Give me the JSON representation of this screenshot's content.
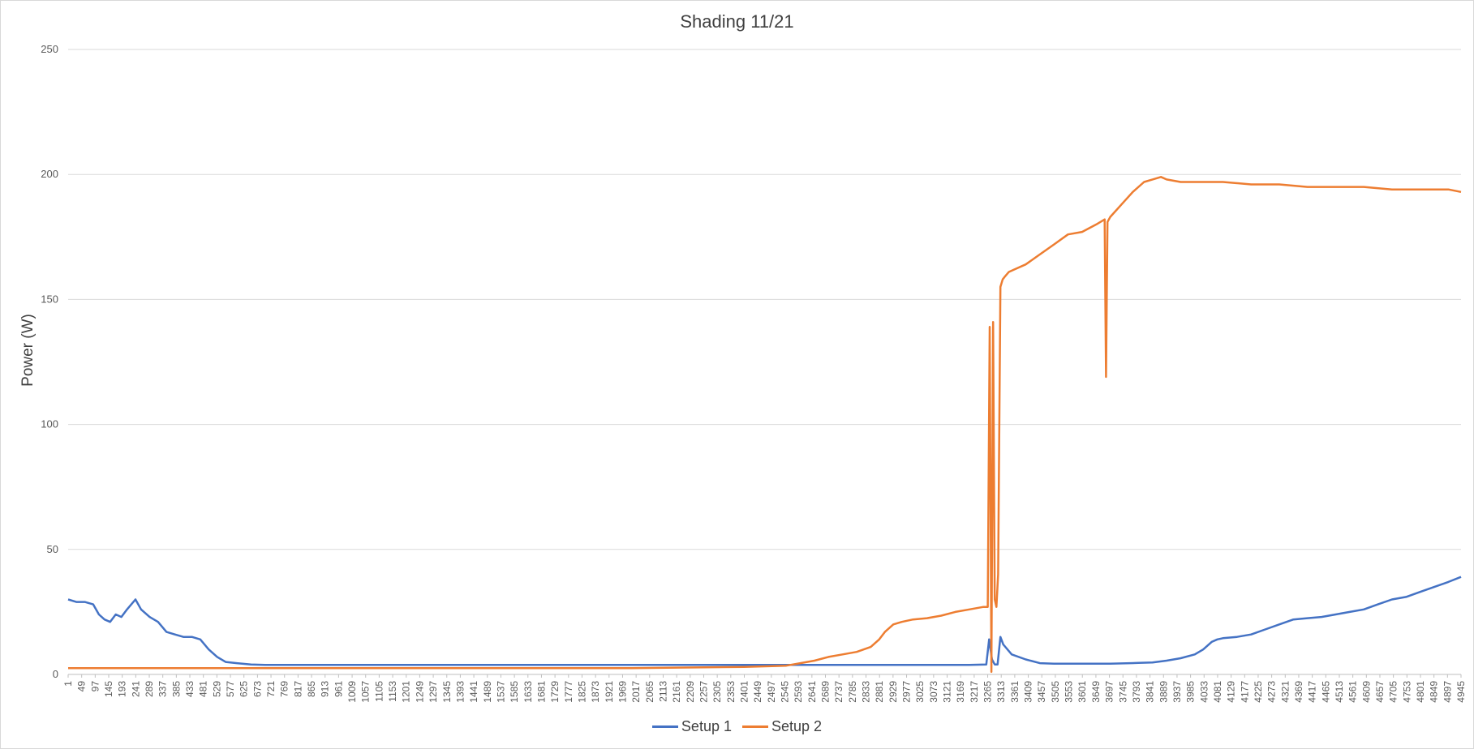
{
  "chart_data": {
    "type": "line",
    "title": "Shading 11/21",
    "xlabel": "",
    "ylabel": "Power (W)",
    "ylim": [
      0,
      250
    ],
    "yticks": [
      0,
      50,
      100,
      150,
      200,
      250
    ],
    "xlim": [
      1,
      4945
    ],
    "xtick_step": 48,
    "grid": "horizontal",
    "legend_position": "bottom",
    "series": [
      {
        "name": "Setup 1",
        "color": "#4472C4",
        "x": [
          1,
          30,
          60,
          90,
          110,
          130,
          150,
          170,
          190,
          210,
          240,
          260,
          290,
          320,
          350,
          380,
          410,
          440,
          470,
          500,
          530,
          560,
          600,
          650,
          700,
          800,
          1000,
          1500,
          2000,
          2500,
          3000,
          3200,
          3260,
          3270,
          3280,
          3290,
          3300,
          3310,
          3320,
          3350,
          3400,
          3450,
          3500,
          3600,
          3700,
          3800,
          3850,
          3900,
          3950,
          4000,
          4030,
          4060,
          4080,
          4100,
          4150,
          4200,
          4250,
          4300,
          4350,
          4400,
          4450,
          4500,
          4550,
          4600,
          4650,
          4700,
          4750,
          4800,
          4850,
          4900,
          4945
        ],
        "y": [
          30,
          29,
          29,
          28,
          24,
          22,
          21,
          24,
          23,
          26,
          30,
          26,
          23,
          21,
          17,
          16,
          15,
          15,
          14,
          10,
          7,
          5,
          4.5,
          4,
          3.8,
          3.8,
          3.8,
          3.8,
          3.8,
          3.8,
          3.8,
          3.8,
          4,
          14,
          6,
          4,
          4,
          15,
          12,
          8,
          6,
          4.5,
          4.3,
          4.3,
          4.3,
          4.6,
          4.8,
          5.5,
          6.5,
          8,
          10,
          13,
          14,
          14.5,
          15,
          16,
          18,
          20,
          22,
          22.5,
          23,
          24,
          25,
          26,
          28,
          30,
          31,
          33,
          35,
          37,
          39
        ]
      },
      {
        "name": "Setup 2",
        "color": "#ED7D31",
        "x": [
          1,
          500,
          1000,
          1500,
          2000,
          2400,
          2550,
          2600,
          2650,
          2700,
          2750,
          2800,
          2850,
          2880,
          2900,
          2930,
          2960,
          3000,
          3050,
          3100,
          3150,
          3200,
          3250,
          3265,
          3272,
          3278,
          3284,
          3290,
          3296,
          3302,
          3310,
          3318,
          3325,
          3340,
          3360,
          3400,
          3450,
          3500,
          3550,
          3600,
          3650,
          3680,
          3685,
          3690,
          3700,
          3740,
          3780,
          3820,
          3850,
          3880,
          3900,
          3950,
          4000,
          4100,
          4200,
          4300,
          4400,
          4500,
          4600,
          4700,
          4800,
          4900,
          4945
        ],
        "y": [
          2.5,
          2.5,
          2.5,
          2.5,
          2.5,
          3,
          3.5,
          4.5,
          5.5,
          7,
          8,
          9,
          11,
          14,
          17,
          20,
          21,
          22,
          22.5,
          23.5,
          25,
          26,
          27,
          27,
          139,
          1,
          141,
          30,
          27,
          40,
          155,
          158,
          159,
          161,
          162,
          164,
          168,
          172,
          176,
          177,
          180,
          182,
          119,
          181,
          183,
          188,
          193,
          197,
          198,
          199,
          198,
          197,
          197,
          197,
          196,
          196,
          195,
          195,
          195,
          194,
          194,
          194,
          193
        ]
      }
    ]
  }
}
